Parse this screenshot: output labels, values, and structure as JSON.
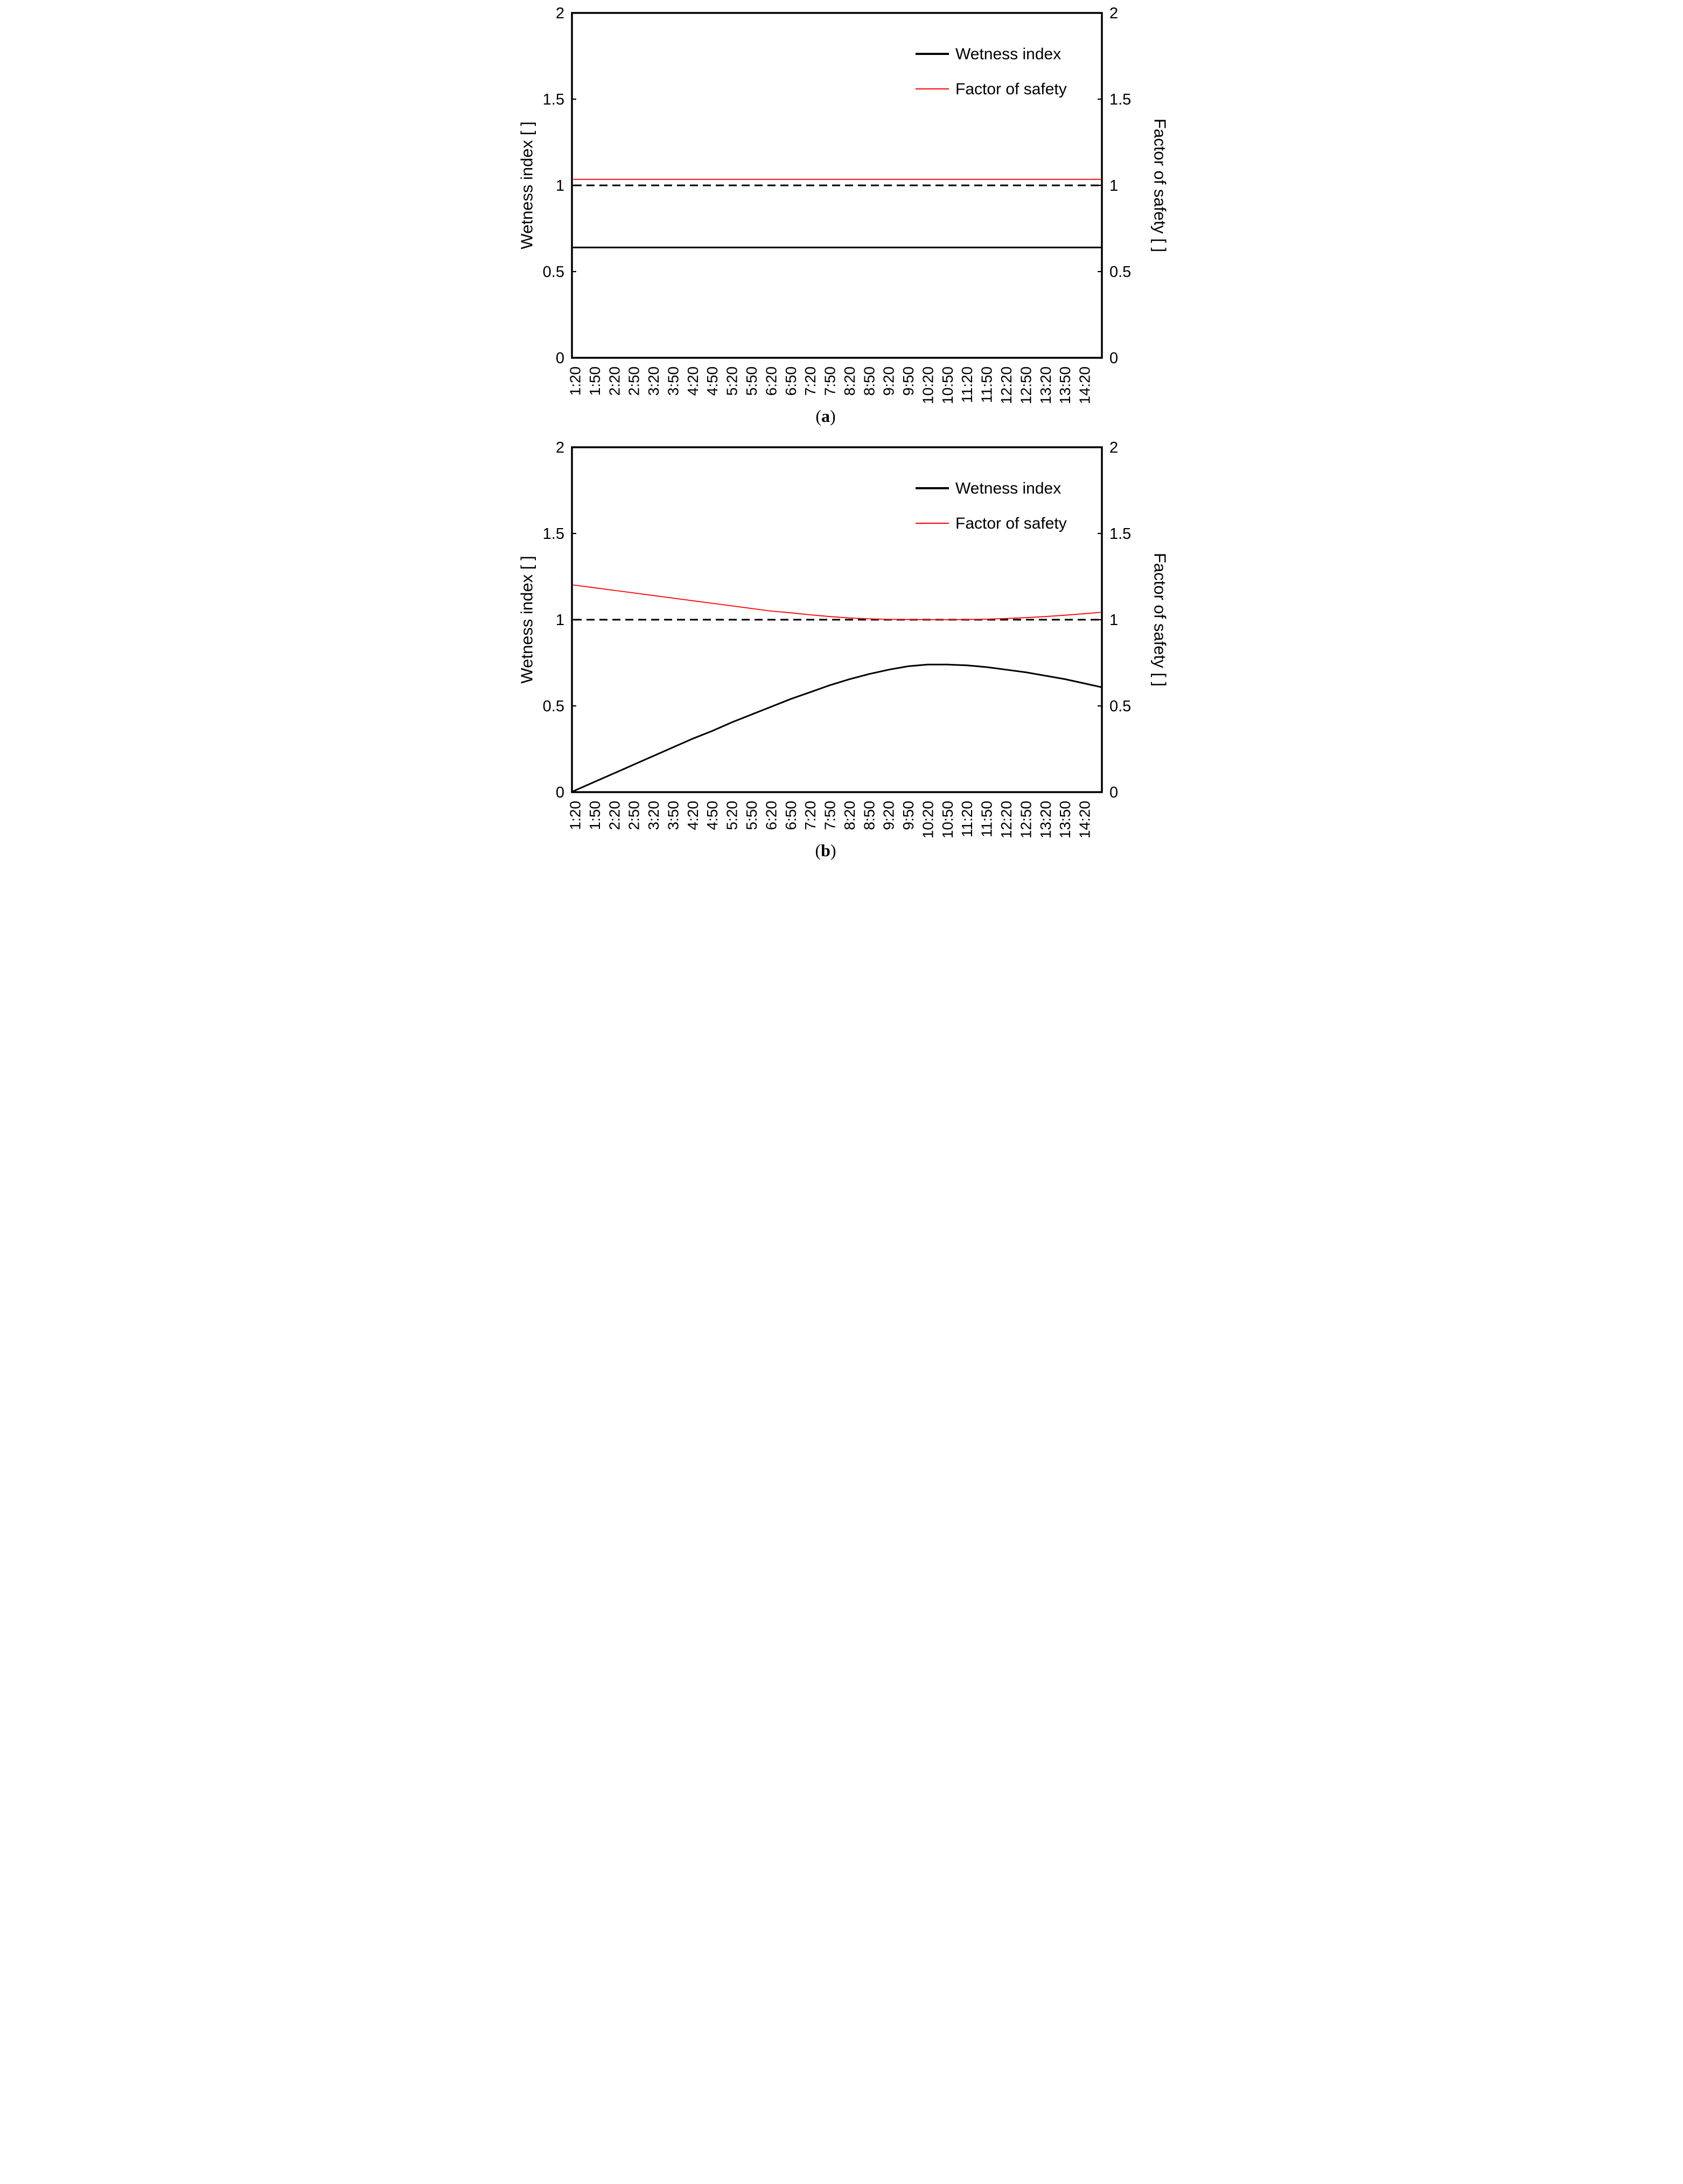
{
  "colors": {
    "wetness_index": "#000000",
    "factor_of_safety": "#ff0000",
    "threshold": "#000000",
    "axis": "#000000",
    "background": "#ffffff"
  },
  "chart_data": [
    {
      "id": "a",
      "type": "line",
      "caption": {
        "prefix": "(",
        "label": "a",
        "suffix": ")"
      },
      "left_axis_title": "Wetness index [ ]",
      "right_axis_title": "Factor of safety [ ]",
      "ylim": [
        0,
        2
      ],
      "y_tick_values": [
        0,
        0.5,
        1,
        1.5,
        2
      ],
      "y_tick_labels": [
        "0",
        "0.5",
        "1",
        "1.5",
        "2"
      ],
      "grid": false,
      "legend_position": "top-right",
      "legend_entries": [
        {
          "label": "Wetness index",
          "color": "#000000",
          "thick": true
        },
        {
          "label": "Factor of safety",
          "color": "#ff0000",
          "thick": false
        }
      ],
      "threshold": {
        "value": 1.0,
        "style": "dashed",
        "color": "#000000"
      },
      "x_categories": [
        "1:20",
        "1:50",
        "2:20",
        "2:50",
        "3:20",
        "3:50",
        "4:20",
        "4:50",
        "5:20",
        "5:50",
        "6:20",
        "6:50",
        "7:20",
        "7:50",
        "8:20",
        "8:50",
        "9:20",
        "9:50",
        "10:20",
        "10:50",
        "11:20",
        "11:50",
        "12:20",
        "12:50",
        "13:20",
        "13:50",
        "14:20"
      ],
      "series": [
        {
          "name": "Wetness index",
          "color": "#000000",
          "thick": true,
          "values": [
            0.64,
            0.64,
            0.64,
            0.64,
            0.64,
            0.64,
            0.64,
            0.64,
            0.64,
            0.64,
            0.64,
            0.64,
            0.64,
            0.64,
            0.64,
            0.64,
            0.64,
            0.64,
            0.64,
            0.64,
            0.64,
            0.64,
            0.64,
            0.64,
            0.64,
            0.64,
            0.64
          ]
        },
        {
          "name": "Factor of safety",
          "color": "#ff0000",
          "thick": false,
          "values": [
            1.035,
            1.035,
            1.035,
            1.035,
            1.035,
            1.035,
            1.035,
            1.035,
            1.035,
            1.035,
            1.035,
            1.035,
            1.035,
            1.035,
            1.035,
            1.035,
            1.035,
            1.035,
            1.035,
            1.035,
            1.035,
            1.035,
            1.035,
            1.035,
            1.035,
            1.035,
            1.035
          ]
        }
      ]
    },
    {
      "id": "b",
      "type": "line",
      "caption": {
        "prefix": "(",
        "label": "b",
        "suffix": ")"
      },
      "left_axis_title": "Wetness index [ ]",
      "right_axis_title": "Factor of safety [ ]",
      "ylim": [
        0,
        2
      ],
      "y_tick_values": [
        0,
        0.5,
        1,
        1.5,
        2
      ],
      "y_tick_labels": [
        "0",
        "0.5",
        "1",
        "1.5",
        "2"
      ],
      "grid": false,
      "legend_position": "top-right",
      "legend_entries": [
        {
          "label": "Wetness index",
          "color": "#000000",
          "thick": true
        },
        {
          "label": "Factor of safety",
          "color": "#ff0000",
          "thick": false
        }
      ],
      "threshold": {
        "value": 1.0,
        "style": "dashed",
        "color": "#000000"
      },
      "x_categories": [
        "1:20",
        "1:50",
        "2:20",
        "2:50",
        "3:20",
        "3:50",
        "4:20",
        "4:50",
        "5:20",
        "5:50",
        "6:20",
        "6:50",
        "7:20",
        "7:50",
        "8:20",
        "8:50",
        "9:20",
        "9:50",
        "10:20",
        "10:50",
        "11:20",
        "11:50",
        "12:20",
        "12:50",
        "13:20",
        "13:50",
        "14:20"
      ],
      "series": [
        {
          "name": "Wetness index",
          "color": "#000000",
          "thick": true,
          "values": [
            0.01,
            0.06,
            0.11,
            0.16,
            0.21,
            0.26,
            0.31,
            0.355,
            0.405,
            0.45,
            0.495,
            0.54,
            0.58,
            0.62,
            0.655,
            0.685,
            0.71,
            0.73,
            0.74,
            0.74,
            0.735,
            0.725,
            0.71,
            0.695,
            0.675,
            0.655,
            0.63
          ]
        },
        {
          "name": "Factor of safety",
          "color": "#ff0000",
          "thick": false,
          "values": [
            1.2,
            1.185,
            1.17,
            1.155,
            1.14,
            1.125,
            1.11,
            1.095,
            1.08,
            1.065,
            1.05,
            1.04,
            1.028,
            1.018,
            1.01,
            1.005,
            1.002,
            1.001,
            1.0,
            1.0,
            1.001,
            1.003,
            1.007,
            1.012,
            1.018,
            1.026,
            1.035
          ]
        }
      ]
    }
  ]
}
